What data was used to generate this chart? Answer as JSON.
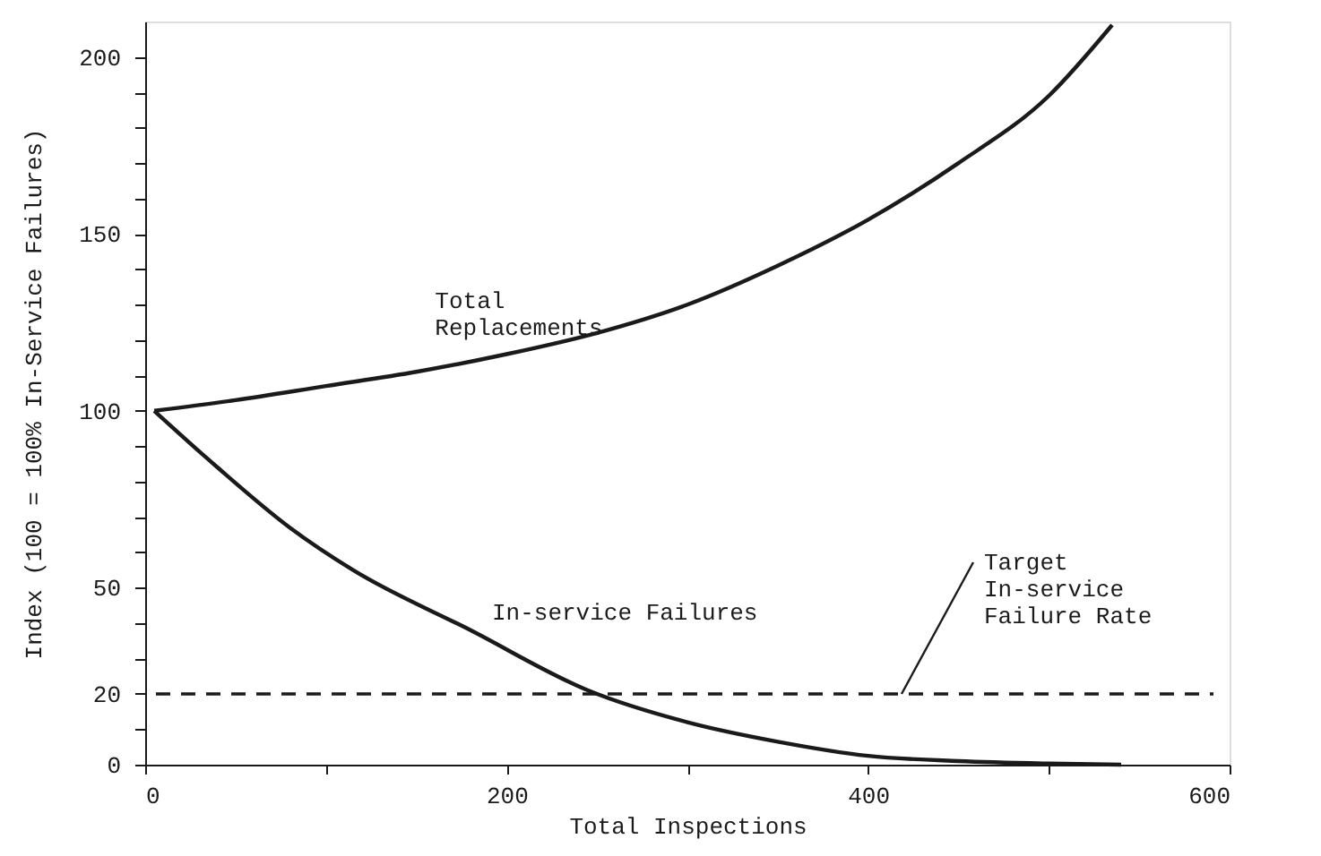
{
  "chart_data": {
    "type": "line",
    "xlabel": "Total Inspections",
    "ylabel": "Index (100 = 100% In-Service Failures)",
    "xlim": [
      0,
      600
    ],
    "ylim": [
      0,
      210
    ],
    "xticks": [
      0,
      {
        "value": 100,
        "label": null
      },
      200,
      {
        "value": 300,
        "label": null
      },
      400,
      {
        "value": 500,
        "label": null
      },
      600
    ],
    "yticks": [
      0,
      {
        "value": 10,
        "label": null
      },
      20,
      {
        "value": 30,
        "label": null
      },
      {
        "value": 40,
        "label": null
      },
      50,
      {
        "value": 60,
        "label": null
      },
      {
        "value": 70,
        "label": null
      },
      {
        "value": 80,
        "label": null
      },
      {
        "value": 90,
        "label": null
      },
      100,
      {
        "value": 110,
        "label": null
      },
      {
        "value": 120,
        "label": null
      },
      {
        "value": 130,
        "label": null
      },
      {
        "value": 140,
        "label": null
      },
      150,
      {
        "value": 160,
        "label": null
      },
      {
        "value": 170,
        "label": null
      },
      {
        "value": 180,
        "label": null
      },
      {
        "value": 190,
        "label": null
      },
      200
    ],
    "grid": false,
    "marker": "none",
    "line_style": "solid",
    "series": [
      {
        "name": "Total Replacements",
        "color": "#1a1a1a",
        "x": [
          5,
          50,
          100,
          150,
          200,
          250,
          300,
          350,
          400,
          450,
          500,
          535
        ],
        "values": [
          100,
          103,
          107,
          111,
          116,
          122,
          130,
          141,
          154,
          170,
          189,
          209
        ]
      },
      {
        "name": "In-service Failures",
        "color": "#1a1a1a",
        "x": [
          5,
          40,
          80,
          115,
          180,
          245,
          300,
          350,
          400,
          450,
          500,
          540
        ],
        "values": [
          100,
          84,
          67,
          55,
          38,
          21,
          12,
          6.5,
          2.5,
          1,
          0.3,
          0
        ]
      }
    ],
    "ref_lines": [
      {
        "axis": "y",
        "value": 20,
        "label": "Target\nIn-service\nFailure Rate",
        "color": "#1a1a1a",
        "line_style": "dashed"
      }
    ]
  }
}
